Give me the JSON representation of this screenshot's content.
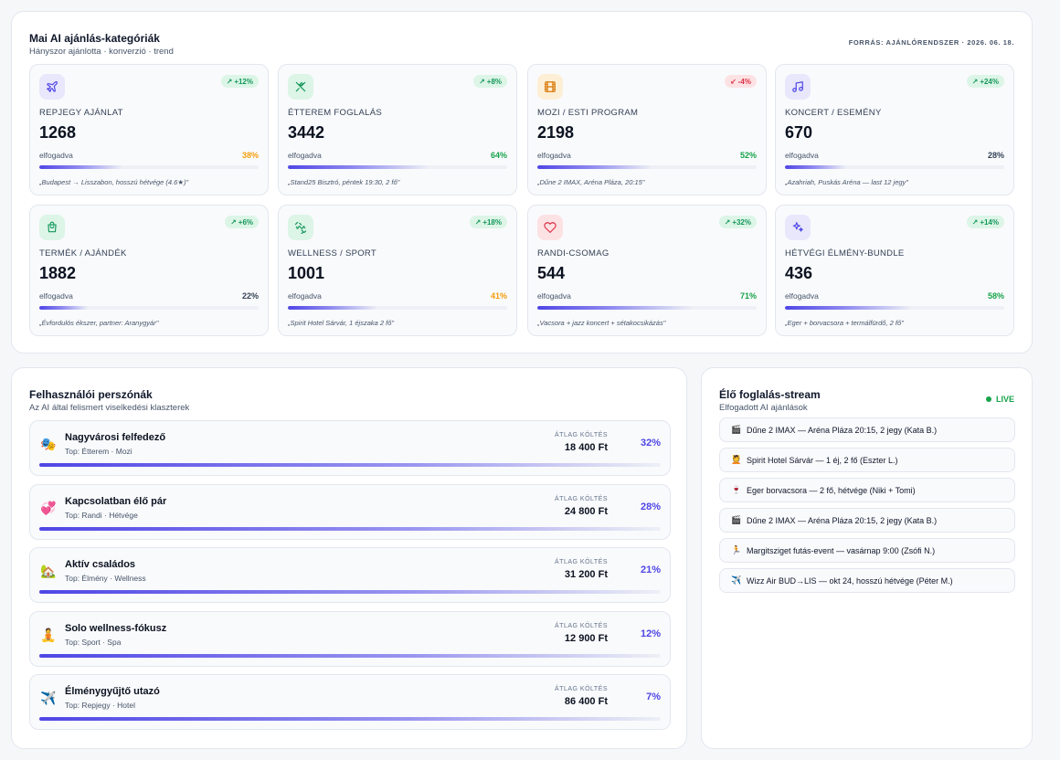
{
  "categories_panel": {
    "title": "Mai AI ajánlás-kategóriák",
    "subtitle": "Hányszor ajánlotta · konverzió · trend",
    "source": "FORRÁS: AJÁNLÓRENDSZER · 2026. 06. 18.",
    "accepted_label": "elfogadva",
    "cards": [
      {
        "icon": "plane-icon",
        "name": "REPJEGY AJÁNLAT",
        "value": "1268",
        "trend": "+12%",
        "trend_dir": "up",
        "accepted": "38%",
        "accepted_fraction": 0.38,
        "pct_color": "#f59e0b",
        "icon_bg": "#e8e7fb",
        "icon_color": "#4f46e5",
        "example": "„Budapest → Lisszabon, hosszú hétvége (4.6★)\""
      },
      {
        "icon": "utensils-icon",
        "name": "ÉTTEREM FOGLALÁS",
        "value": "3442",
        "trend": "+8%",
        "trend_dir": "up",
        "accepted": "64%",
        "accepted_fraction": 0.64,
        "pct_color": "#16a34a",
        "icon_bg": "#dcf5e7",
        "icon_color": "#15975a",
        "example": "„Stand25 Bisztró, péntek 19:30, 2 fő\""
      },
      {
        "icon": "film-icon",
        "name": "MOZI / ESTI PROGRAM",
        "value": "2198",
        "trend": "-4%",
        "trend_dir": "down",
        "accepted": "52%",
        "accepted_fraction": 0.52,
        "pct_color": "#16a34a",
        "icon_bg": "#fdefd6",
        "icon_color": "#d97706",
        "example": "„Dűne 2 IMAX, Aréna Pláza, 20:15\""
      },
      {
        "icon": "music-icon",
        "name": "KONCERT / ESEMÉNY",
        "value": "670",
        "trend": "+24%",
        "trend_dir": "up",
        "accepted": "28%",
        "accepted_fraction": 0.28,
        "pct_color": "#334155",
        "icon_bg": "#e8e7fb",
        "icon_color": "#4f46e5",
        "example": "„Azahriah, Puskás Aréna — last 12 jegy\""
      },
      {
        "icon": "gift-bag-icon",
        "name": "TERMÉK / AJÁNDÉK",
        "value": "1882",
        "trend": "+6%",
        "trend_dir": "up",
        "accepted": "22%",
        "accepted_fraction": 0.22,
        "pct_color": "#334155",
        "icon_bg": "#dcf5e7",
        "icon_color": "#15975a",
        "example": "„Évfordulós ékszer, partner: Aranygyár\""
      },
      {
        "icon": "dumbbell-icon",
        "name": "WELLNESS / SPORT",
        "value": "1001",
        "trend": "+18%",
        "trend_dir": "up",
        "accepted": "41%",
        "accepted_fraction": 0.41,
        "pct_color": "#f59e0b",
        "icon_bg": "#dcf5e7",
        "icon_color": "#15975a",
        "example": "„Spirit Hotel Sárvár, 1 éjszaka 2 fő\""
      },
      {
        "icon": "heart-icon",
        "name": "RANDI-CSOMAG",
        "value": "544",
        "trend": "+32%",
        "trend_dir": "up",
        "accepted": "71%",
        "accepted_fraction": 0.71,
        "pct_color": "#16a34a",
        "icon_bg": "#fde2e4",
        "icon_color": "#dc2f44",
        "example": "„Vacsora + jazz koncert + sétakocsikázás\""
      },
      {
        "icon": "sparkles-icon",
        "name": "HÉTVÉGI ÉLMÉNY-BUNDLE",
        "value": "436",
        "trend": "+14%",
        "trend_dir": "up",
        "accepted": "58%",
        "accepted_fraction": 0.58,
        "pct_color": "#16a34a",
        "icon_bg": "#e8e7fb",
        "icon_color": "#4f46e5",
        "example": "„Eger + borvacsora + termálfürdő, 2 fő\""
      }
    ]
  },
  "persona_panel": {
    "title": "Felhasználói perszónák",
    "subtitle": "Az AI által felismert viselkedési klaszterek",
    "spend_label": "ÁTLAG KÖLTÉS",
    "rows": [
      {
        "icon": "🎭",
        "icon_name": "theater-masks-icon",
        "name": "Nagyvárosi felfedező",
        "top": "Top: Étterem · Mozi",
        "spend": "18 400 Ft",
        "share": "32%",
        "share_fraction": 0.32
      },
      {
        "icon": "💞",
        "icon_name": "hearts-icon",
        "name": "Kapcsolatban élő pár",
        "top": "Top: Randi · Hétvége",
        "spend": "24 800 Ft",
        "share": "28%",
        "share_fraction": 0.28
      },
      {
        "icon": "🏡",
        "icon_name": "house-icon",
        "name": "Aktív családos",
        "top": "Top: Élmény · Wellness",
        "spend": "31 200 Ft",
        "share": "21%",
        "share_fraction": 0.21
      },
      {
        "icon": "🧘",
        "icon_name": "meditation-icon",
        "name": "Solo wellness-fókusz",
        "top": "Top: Sport · Spa",
        "spend": "12 900 Ft",
        "share": "12%",
        "share_fraction": 0.12
      },
      {
        "icon": "✈️",
        "icon_name": "airplane-icon",
        "name": "Élménygyűjtő utazó",
        "top": "Top: Repjegy · Hotel",
        "spend": "86 400 Ft",
        "share": "7%",
        "share_fraction": 0.07
      }
    ]
  },
  "stream_panel": {
    "title": "Élő foglalás-stream",
    "subtitle": "Elfogadott AI ajánlások",
    "live_label": "LIVE",
    "items": [
      {
        "icon": "🎬",
        "icon_name": "clapper-icon",
        "text": "Dűne 2 IMAX — Aréna Pláza 20:15, 2 jegy (Kata B.)"
      },
      {
        "icon": "💆",
        "icon_name": "spa-icon",
        "text": "Spirit Hotel Sárvár — 1 éj, 2 fő (Eszter L.)"
      },
      {
        "icon": "🍷",
        "icon_name": "wine-glass-icon",
        "text": "Eger borvacsora — 2 fő, hétvége (Niki + Tomi)"
      },
      {
        "icon": "🎬",
        "icon_name": "clapper-icon",
        "text": "Dűne 2 IMAX — Aréna Pláza 20:15, 2 jegy (Kata B.)"
      },
      {
        "icon": "🏃",
        "icon_name": "runner-icon",
        "text": "Margitsziget futás-event — vasárnap 9:00 (Zsófi N.)"
      },
      {
        "icon": "✈️",
        "icon_name": "airplane-icon",
        "text": "Wizz Air BUD→LIS — okt 24, hosszú hétvége (Péter M.)"
      }
    ]
  }
}
